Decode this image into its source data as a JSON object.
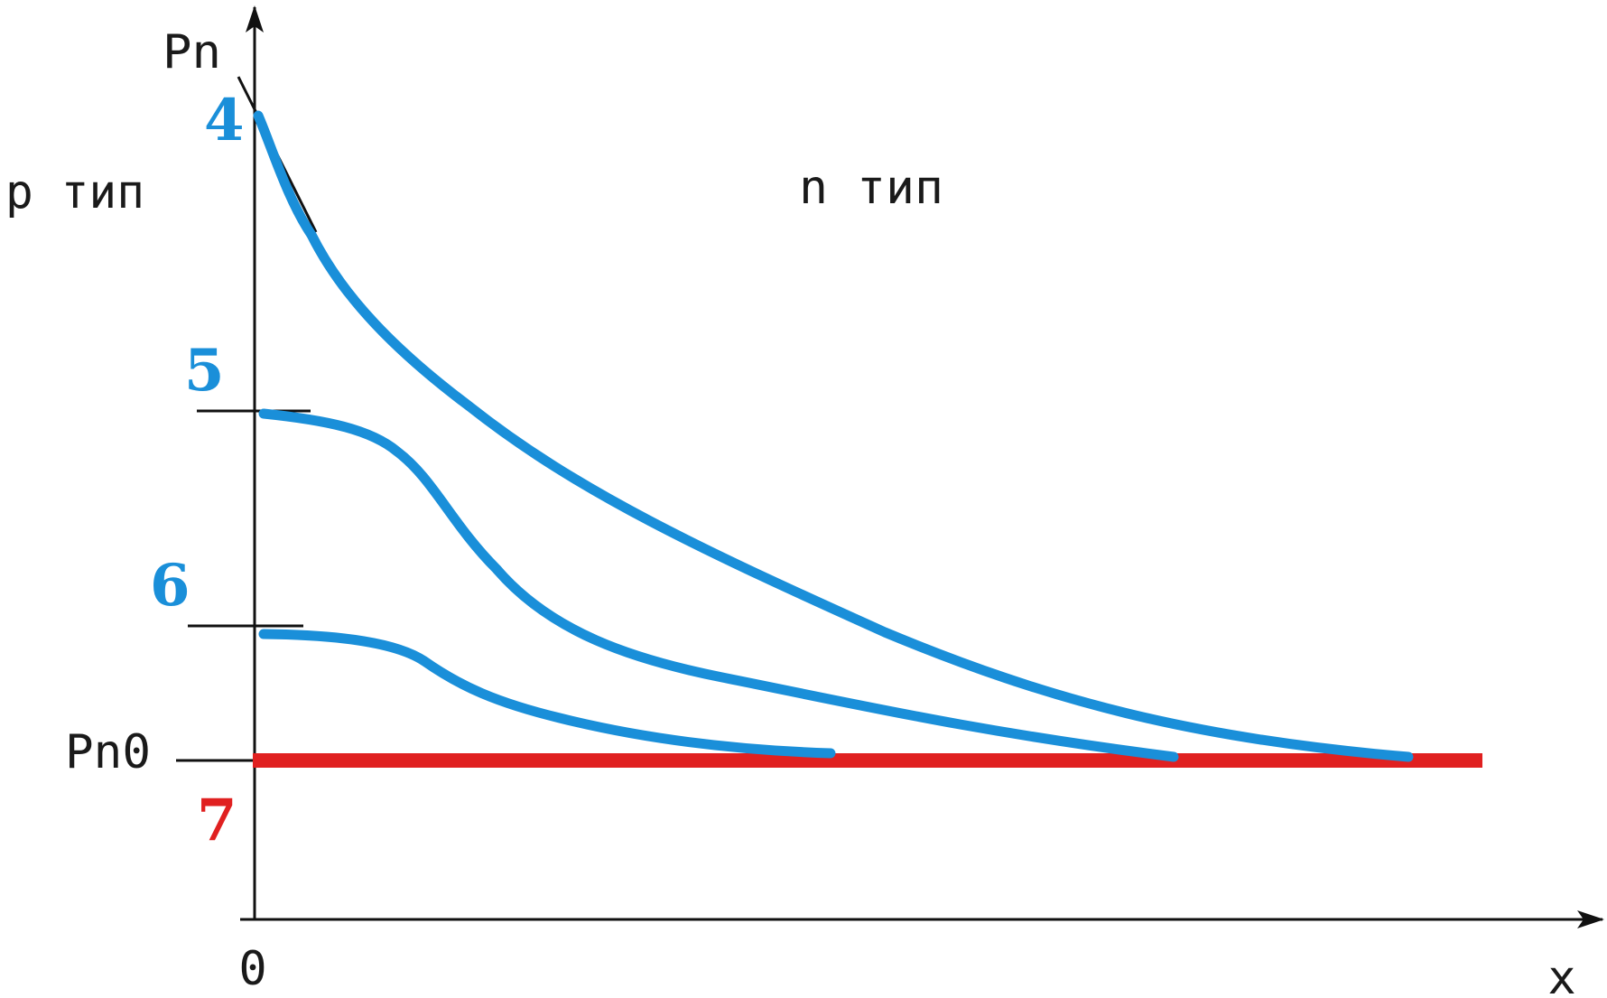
{
  "labels": {
    "y_axis": "Pn",
    "x_axis": "x",
    "origin": "0",
    "p_region": "p тип",
    "n_region": "n тип",
    "equilibrium": "Pn0"
  },
  "curves": [
    {
      "number": "4",
      "color": "#1a8fd9"
    },
    {
      "number": "5",
      "color": "#1a8fd9"
    },
    {
      "number": "6",
      "color": "#1a8fd9"
    },
    {
      "number": "7",
      "color": "#e02020"
    }
  ],
  "colors": {
    "axis": "#111111",
    "curve": "#1a8fd9",
    "equilibrium": "#e02020"
  }
}
